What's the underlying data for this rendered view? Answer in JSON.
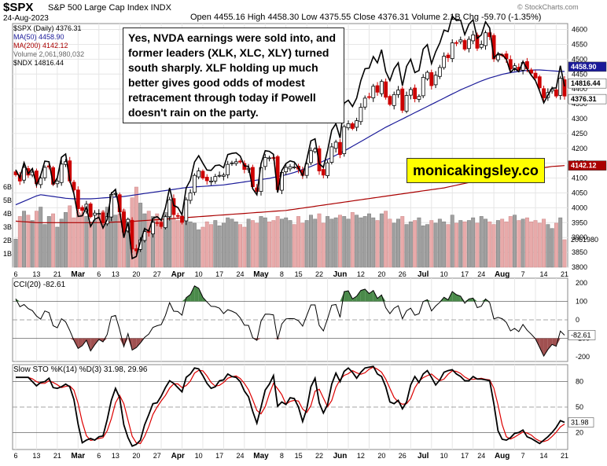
{
  "header": {
    "symbol": "$SPX",
    "name": "S&P 500 Large Cap Index INDX",
    "date": "24-Aug-2023",
    "ohlc": "Open 4455.16  High 4458.30  Low 4375.55  Close 4376.31  Volume 2.1B  Chg -59.70 (-1.35%)",
    "brand": "© StockCharts.com"
  },
  "legend": {
    "price": "$SPX (Daily) 4376.31",
    "ma50": "MA(50) 4458.90",
    "ma200": "MA(200) 4142.12",
    "volume": "Volume 2,061,980,032",
    "ndx": "$NDX 14816.44",
    "cci": "CCI(20) -82.61",
    "sto": "Slow STO %K(14) %D(3) 31.98, 29.96"
  },
  "annotation": "Yes, NVDA earnings were sold into, and former leaders (XLK, XLC, XLY) turned south sharply. XLF holding up much better gives good odds of modest retracement through today if Powell doesn't rain on the party.",
  "watermark": "monicakingsley.co",
  "colors": {
    "up": "#ffffff",
    "down": "#cc0000",
    "ma50": "#1a1a99",
    "ma200": "#aa0000",
    "ndx": "#000000",
    "cciFill": "#4a8a4a",
    "cciNeg": "#a05050",
    "stoK": "#000000",
    "stoD": "#dd0000",
    "volUp": "#a0a0a0",
    "volDown": "#e8aaaa"
  },
  "chart_data": [
    {
      "type": "candlestick",
      "title": "$SPX (Daily)",
      "ylim": [
        3800,
        4620
      ],
      "y_ticks": [
        "4600",
        "4550",
        "4500",
        "4450",
        "4400",
        "4350",
        "4300",
        "4250",
        "4200",
        "4150",
        "4100",
        "4050",
        "4000",
        "3950",
        "3900",
        "3850",
        "3800"
      ],
      "x_tick_labels": [
        "6",
        "13",
        "21",
        "Mar",
        "6",
        "13",
        "20",
        "27",
        "Apr",
        "10",
        "17",
        "24",
        "May",
        "8",
        "15",
        "22",
        "Jun",
        "12",
        "20",
        "26",
        "Jul",
        "10",
        "17",
        "24",
        "Aug",
        "7",
        "14",
        "21"
      ],
      "price_labels": [
        "4458.90",
        "14816.44",
        "4376.31",
        "4142.12",
        "2061980"
      ],
      "volume_axis_labels": [
        "6B",
        "5B",
        "4B",
        "3B",
        "2B",
        "1B"
      ],
      "last_close": 4376.31,
      "ma50_last": 4458.9,
      "ma200_last": 4142.12,
      "volume_last": 2061980032,
      "ndx_last": 14816.44,
      "closes": [
        4111,
        4090,
        4136,
        4110,
        4120,
        4081,
        4100,
        4136,
        4137,
        4079,
        4090,
        4147,
        4155,
        4090,
        4060,
        3997,
        3991,
        4012,
        3970,
        3982,
        3981,
        3951,
        3970,
        4045,
        4048,
        3986,
        3918,
        3961,
        3861,
        3855,
        3892,
        3920,
        3917,
        3951,
        3948,
        3937,
        3970,
        4027,
        3977,
        3971,
        3951,
        4027,
        4050,
        4109,
        4124,
        4100,
        4091,
        4090,
        4105,
        4109,
        4110,
        4146,
        4151,
        4155,
        4154,
        4129,
        4133,
        4071,
        4055,
        4135,
        4169,
        4168,
        4167,
        4061,
        4119,
        4136,
        4138,
        4137,
        4130,
        4109,
        4148,
        4192,
        4198,
        4124,
        4110,
        4151,
        4205,
        4221,
        4179,
        4273,
        4283,
        4267,
        4293,
        4338,
        4369,
        4372,
        4409,
        4389,
        4425,
        4372,
        4348,
        4381,
        4396,
        4328,
        4378,
        4398,
        4367,
        4375,
        4439,
        4456,
        4411,
        4446,
        4472,
        4510,
        4505,
        4555,
        4554,
        4565,
        4534,
        4567,
        4582,
        4537,
        4550,
        4589,
        4576,
        4501,
        4514,
        4513,
        4501,
        4467,
        4478,
        4464,
        4489,
        4468,
        4453,
        4437,
        4404,
        4370,
        4388,
        4399,
        4376,
        4436,
        4376
      ],
      "ma50": [
        4010,
        4016,
        4022,
        4028,
        4034,
        4040,
        4044,
        4042,
        4040,
        4038,
        4036,
        4034,
        4032,
        4031,
        4030,
        4030,
        4030,
        4030,
        4030,
        4031,
        4032,
        4033,
        4034,
        4035,
        4036,
        4037,
        4038,
        4040,
        4042,
        4044,
        4046,
        4048,
        4050,
        4052,
        4054,
        4056,
        4058,
        4060,
        4062,
        4064,
        4066,
        4068,
        4069,
        4070,
        4071,
        4072,
        4073,
        4074,
        4075,
        4076,
        4077,
        4079,
        4081,
        4083,
        4085,
        4087,
        4089,
        4091,
        4093,
        4095,
        4097,
        4099,
        4102,
        4105,
        4108,
        4111,
        4115,
        4119,
        4124,
        4129,
        4134,
        4139,
        4145,
        4151,
        4157,
        4163,
        4170,
        4177,
        4184,
        4191,
        4199,
        4207,
        4215,
        4223,
        4231,
        4239,
        4247,
        4255,
        4263,
        4271,
        4278,
        4285,
        4292,
        4299,
        4306,
        4313,
        4320,
        4327,
        4334,
        4341,
        4348,
        4355,
        4362,
        4369,
        4376,
        4383,
        4390,
        4397,
        4403,
        4409,
        4415,
        4421,
        4427,
        4432,
        4437,
        4441,
        4445,
        4449,
        4452,
        4455,
        4457,
        4459,
        4461,
        4462,
        4463,
        4464,
        4464,
        4463,
        4462,
        4461,
        4460,
        4459,
        4458.9
      ],
      "ma200": [
        3955,
        3954,
        3953,
        3952,
        3951,
        3950,
        3950,
        3950,
        3950,
        3950,
        3950,
        3950,
        3950,
        3950,
        3950,
        3950,
        3950,
        3950,
        3950,
        3950,
        3950,
        3950,
        3951,
        3951,
        3952,
        3952,
        3953,
        3953,
        3954,
        3955,
        3956,
        3957,
        3958,
        3959,
        3960,
        3961,
        3962,
        3963,
        3964,
        3965,
        3966,
        3967,
        3968,
        3969,
        3970,
        3971,
        3972,
        3973,
        3974,
        3975,
        3976,
        3977,
        3978,
        3979,
        3980,
        3981,
        3982,
        3983,
        3984,
        3985,
        3986,
        3987,
        3988,
        3989,
        3990,
        3991,
        3993,
        3995,
        3997,
        3999,
        4001,
        4003,
        4005,
        4007,
        4009,
        4011,
        4013,
        4015,
        4017,
        4019,
        4021,
        4023,
        4025,
        4027,
        4029,
        4031,
        4033,
        4035,
        4037,
        4039,
        4041,
        4043,
        4045,
        4047,
        4049,
        4051,
        4053,
        4055,
        4057,
        4059,
        4061,
        4063,
        4065,
        4067,
        4070,
        4073,
        4076,
        4079,
        4082,
        4085,
        4088,
        4091,
        4094,
        4097,
        4100,
        4103,
        4106,
        4109,
        4112,
        4115,
        4118,
        4121,
        4124,
        4127,
        4129,
        4131,
        4133,
        4135,
        4137,
        4139,
        4140,
        4141,
        4142.12
      ],
      "ndx_scaled": [
        4128,
        4101,
        4152,
        4115,
        4132,
        4076,
        4109,
        4157,
        4155,
        4079,
        4101,
        4170,
        4181,
        4093,
        4047,
        3971,
        3973,
        4002,
        3937,
        3961,
        3968,
        3932,
        3960,
        4048,
        4062,
        3989,
        3899,
        3952,
        3829,
        3836,
        3886,
        3930,
        3922,
        3965,
        3970,
        3958,
        4000,
        4067,
        4008,
        4001,
        3976,
        4067,
        4093,
        4154,
        4175,
        4150,
        4127,
        4126,
        4142,
        4144,
        4135,
        4179,
        4183,
        4185,
        4174,
        4141,
        4139,
        4064,
        4044,
        4149,
        4192,
        4190,
        4180,
        4051,
        4126,
        4149,
        4158,
        4154,
        4134,
        4108,
        4162,
        4225,
        4232,
        4148,
        4136,
        4192,
        4261,
        4283,
        4235,
        4352,
        4362,
        4341,
        4369,
        4428,
        4468,
        4470,
        4509,
        4488,
        4532,
        4459,
        4428,
        4468,
        4488,
        4411,
        4476,
        4500,
        4455,
        4462,
        4534,
        4549,
        4485,
        4525,
        4555,
        4598,
        4593,
        4645,
        4630,
        4632,
        4583,
        4618,
        4633,
        4570,
        4582,
        4626,
        4605,
        4504,
        4519,
        4515,
        4500,
        4456,
        4469,
        4458,
        4492,
        4468,
        4446,
        4428,
        4393,
        4353,
        4379,
        4403,
        4403,
        4478,
        4409
      ],
      "volume_billions": [
        2.1,
        3.8,
        4.2,
        3.9,
        3.5,
        4.2,
        4.5,
        3.2,
        3.8,
        4.0,
        3.0,
        3.6,
        4.1,
        4.6,
        3.7,
        4.1,
        4.0,
        3.8,
        3.4,
        3.5,
        3.9,
        4.2,
        4.5,
        4.8,
        3.9,
        4.0,
        4.3,
        3.6,
        5.2,
        6.0,
        4.8,
        4.0,
        4.2,
        3.8,
        4.0,
        3.5,
        4.1,
        4.3,
        3.6,
        3.5,
        3.4,
        3.6,
        3.4,
        3.3,
        2.8,
        3.0,
        3.4,
        3.2,
        3.5,
        3.1,
        3.3,
        3.7,
        3.6,
        3.4,
        3.2,
        3.0,
        3.6,
        3.5,
        3.3,
        3.8,
        3.7,
        3.4,
        3.5,
        3.8,
        3.6,
        3.7,
        3.5,
        3.2,
        3.8,
        3.3,
        3.5,
        3.9,
        3.6,
        4.0,
        3.3,
        3.8,
        3.6,
        3.7,
        3.9,
        3.8,
        3.6,
        4.1,
        3.9,
        3.7,
        3.8,
        4.0,
        3.7,
        3.5,
        4.0,
        4.2,
        3.6,
        3.3,
        3.6,
        3.8,
        3.2,
        3.4,
        3.5,
        3.7,
        3.1,
        3.2,
        3.5,
        3.3,
        3.6,
        3.4,
        3.2,
        3.9,
        3.3,
        3.5,
        3.4,
        3.5,
        3.7,
        3.3,
        3.8,
        3.6,
        3.4,
        3.2,
        3.5,
        3.6,
        3.4,
        3.8,
        3.9,
        3.5,
        3.6,
        3.7,
        3.4,
        3.5,
        3.3,
        3.6,
        3.2,
        2.9,
        3.3,
        3.7,
        2.06
      ]
    },
    {
      "type": "line",
      "title": "CCI(20)",
      "last": -82.61,
      "ylim": [
        -200,
        200
      ],
      "y_ticks": [
        "200",
        "100",
        "0",
        "-100",
        "-200"
      ],
      "x_tick_labels": [],
      "values": [
        114,
        71,
        83,
        61,
        50,
        21,
        4,
        48,
        39,
        -32,
        -43,
        6,
        -11,
        -57,
        -111,
        -155,
        -140,
        -110,
        -168,
        -135,
        -106,
        -119,
        -79,
        17,
        24,
        -53,
        -145,
        -75,
        -164,
        -150,
        -125,
        -95,
        -77,
        -41,
        -32,
        -26,
        24,
        93,
        47,
        45,
        25,
        120,
        137,
        184,
        171,
        122,
        97,
        73,
        72,
        63,
        34,
        55,
        47,
        36,
        11,
        -29,
        -30,
        -97,
        -111,
        -7,
        31,
        30,
        27,
        -106,
        -22,
        5,
        7,
        6,
        -5,
        -34,
        24,
        81,
        81,
        -30,
        -60,
        6,
        79,
        83,
        13,
        153,
        157,
        113,
        128,
        159,
        166,
        142,
        159,
        116,
        135,
        66,
        33,
        63,
        76,
        6,
        49,
        63,
        25,
        33,
        99,
        109,
        48,
        75,
        95,
        122,
        108,
        153,
        136,
        128,
        90,
        113,
        118,
        66,
        74,
        113,
        93,
        5,
        13,
        6,
        -14,
        -60,
        -47,
        -64,
        -25,
        -56,
        -78,
        -103,
        -149,
        -196,
        -161,
        -133,
        -143,
        -61,
        -83
      ]
    },
    {
      "type": "line",
      "title": "Slow STO %K(14) %D(3)",
      "k_last": 31.98,
      "d_last": 29.96,
      "ylim": [
        0,
        100
      ],
      "y_ticks": [
        "80",
        "50",
        "20"
      ],
      "x_tick_labels": [
        "6",
        "13",
        "21",
        "Mar",
        "6",
        "13",
        "20",
        "27",
        "Apr",
        "10",
        "17",
        "24",
        "May",
        "8",
        "15",
        "22",
        "Jun",
        "12",
        "20",
        "26",
        "Jul",
        "10",
        "17",
        "24",
        "Aug",
        "7",
        "14",
        "21"
      ],
      "k": [
        85,
        85,
        85,
        85,
        80,
        75,
        79,
        80,
        84,
        73,
        72,
        74,
        77,
        74,
        59,
        30,
        8,
        11,
        13,
        11,
        15,
        16,
        35,
        58,
        72,
        61,
        29,
        14,
        4,
        6,
        11,
        29,
        41,
        54,
        55,
        63,
        73,
        81,
        78,
        73,
        68,
        85,
        89,
        96,
        95,
        87,
        78,
        72,
        74,
        81,
        82,
        89,
        86,
        85,
        80,
        69,
        62,
        45,
        31,
        50,
        70,
        77,
        87,
        51,
        56,
        53,
        61,
        60,
        50,
        33,
        48,
        74,
        84,
        55,
        43,
        53,
        77,
        90,
        80,
        92,
        96,
        91,
        84,
        91,
        96,
        97,
        98,
        89,
        86,
        74,
        56,
        54,
        58,
        48,
        56,
        76,
        86,
        79,
        89,
        93,
        85,
        76,
        82,
        91,
        93,
        94,
        89,
        86,
        81,
        81,
        86,
        83,
        83,
        82,
        81,
        54,
        22,
        12,
        11,
        14,
        19,
        20,
        23,
        15,
        13,
        10,
        7,
        11,
        15,
        20,
        26,
        34,
        32
      ]
    }
  ]
}
